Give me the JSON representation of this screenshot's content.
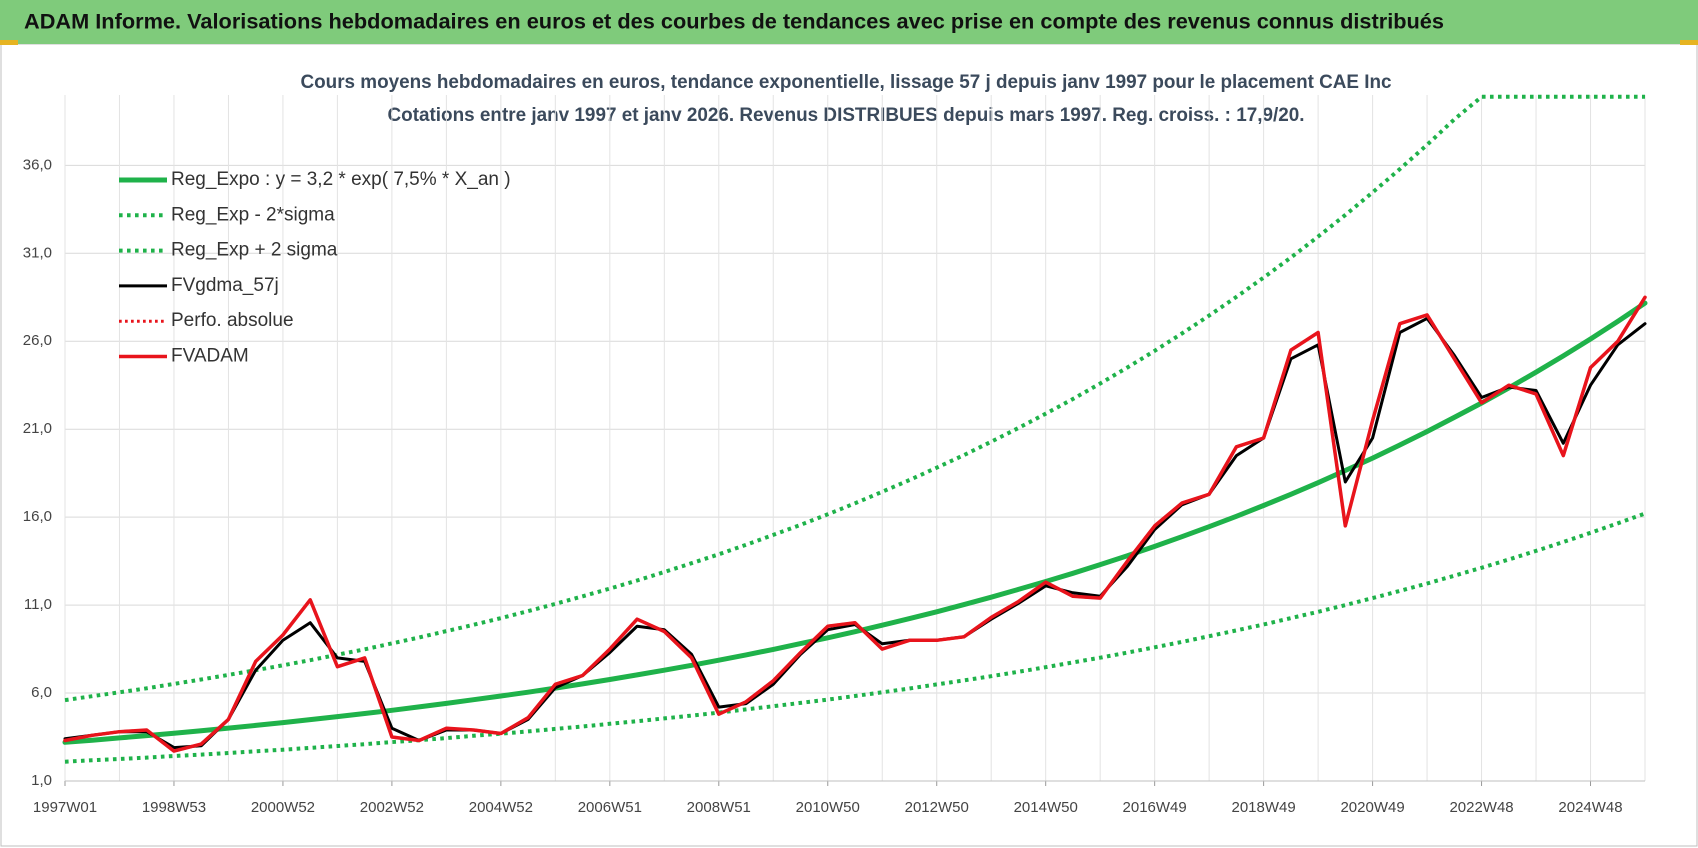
{
  "chart_data": {
    "type": "line",
    "title": "ADAM Informe. Valorisations hebdomadaires en euros et des courbes de tendances avec prise en compte des revenus connus distribués",
    "subtitle": [
      "Cours moyens hebdomadaires en euros, tendance exponentielle, lissage 57 j depuis janv 1997 pour le placement CAE Inc",
      "Cotations entre janv 1997 et janv 2026. Revenus DISTRIBUES depuis mars 1997. Reg. croiss. : 17,9/20."
    ],
    "categories": [
      "1997W01",
      null,
      null,
      null,
      "1998W53",
      null,
      null,
      null,
      "2000W52",
      null,
      null,
      null,
      "2002W52",
      null,
      null,
      null,
      "2004W52",
      null,
      null,
      null,
      "2006W51",
      null,
      null,
      null,
      "2008W51",
      null,
      null,
      null,
      "2010W50",
      null,
      null,
      null,
      "2012W50",
      null,
      null,
      null,
      "2014W50",
      null,
      null,
      null,
      "2016W49",
      null,
      null,
      null,
      "2018W49",
      null,
      null,
      null,
      "2020W49",
      null,
      null,
      null,
      "2022W48",
      null,
      null,
      null,
      "2024W48",
      null,
      null
    ],
    "ylim": [
      1,
      40
    ],
    "yticks": [
      {
        "value": 1,
        "label": "1,0"
      },
      {
        "value": 6,
        "label": "6,0"
      },
      {
        "value": 11,
        "label": "11,0"
      },
      {
        "value": 16,
        "label": "16,0"
      },
      {
        "value": 21,
        "label": "21,0"
      },
      {
        "value": 26,
        "label": "26,0"
      },
      {
        "value": 31,
        "label": "31,0"
      },
      {
        "value": 36,
        "label": "36,0"
      }
    ],
    "grid": true,
    "legend": "upper left",
    "series": [
      {
        "name": "Reg_Expo : y = 3,2 * exp( 7,5% *  X_an )",
        "color": "#1fb24a",
        "style": "solid",
        "width": 5,
        "values": [
          3.2,
          3.32,
          3.45,
          3.58,
          3.72,
          3.86,
          4.01,
          4.16,
          4.32,
          4.49,
          4.66,
          4.84,
          5.02,
          5.21,
          5.41,
          5.62,
          5.83,
          6.05,
          6.28,
          6.52,
          6.77,
          7.03,
          7.3,
          7.58,
          7.87,
          8.17,
          8.48,
          8.81,
          9.14,
          9.49,
          9.86,
          10.23,
          10.62,
          11.03,
          11.45,
          11.89,
          12.34,
          12.81,
          13.3,
          13.81,
          14.34,
          14.89,
          15.46,
          16.05,
          16.66,
          17.3,
          17.96,
          18.65,
          19.36,
          20.1,
          20.87,
          21.67,
          22.49,
          23.35,
          24.24,
          25.17,
          26.13,
          27.13,
          28.17
        ]
      },
      {
        "name": "Reg_Exp - 2*sigma",
        "color": "#1fb24a",
        "style": "dotted",
        "width": 4,
        "values": [
          2.1,
          2.18,
          2.25,
          2.33,
          2.42,
          2.5,
          2.59,
          2.69,
          2.78,
          2.88,
          2.99,
          3.09,
          3.21,
          3.32,
          3.44,
          3.57,
          3.69,
          3.82,
          3.96,
          4.1,
          4.25,
          4.4,
          4.56,
          4.72,
          4.89,
          5.07,
          5.25,
          5.44,
          5.63,
          5.83,
          6.04,
          6.26,
          6.49,
          6.72,
          6.96,
          7.21,
          7.47,
          7.74,
          8.01,
          8.3,
          8.6,
          8.91,
          9.23,
          9.56,
          9.9,
          10.26,
          10.62,
          11.0,
          11.4,
          11.81,
          12.23,
          12.67,
          13.12,
          13.59,
          14.08,
          14.59,
          15.11,
          15.65,
          16.21
        ]
      },
      {
        "name": "Reg_Exp + 2 sigma",
        "color": "#1fb24a",
        "style": "dotted",
        "width": 4,
        "values": [
          5.6,
          5.82,
          6.04,
          6.27,
          6.52,
          6.77,
          7.03,
          7.3,
          7.58,
          7.87,
          8.18,
          8.49,
          8.82,
          9.16,
          9.52,
          9.88,
          10.26,
          10.66,
          11.07,
          11.5,
          11.94,
          12.4,
          12.88,
          13.38,
          13.89,
          14.43,
          14.99,
          15.56,
          16.16,
          16.79,
          17.44,
          18.11,
          18.81,
          19.53,
          20.29,
          21.07,
          21.88,
          22.72,
          23.6,
          24.51,
          25.46,
          26.44,
          27.46,
          28.52,
          29.62,
          30.76,
          31.95,
          33.18,
          34.46,
          35.79,
          37.17,
          38.61,
          39.9,
          39.9,
          39.9,
          39.9,
          39.9,
          39.9,
          39.9
        ]
      },
      {
        "name": "FVgdma_57j",
        "color": "#000000",
        "style": "solid",
        "width": 3,
        "values": [
          3.4,
          3.6,
          3.8,
          3.8,
          2.9,
          3.0,
          4.5,
          7.3,
          9.0,
          10.0,
          8.0,
          7.8,
          4.0,
          3.3,
          3.9,
          3.9,
          3.7,
          4.5,
          6.3,
          7.0,
          8.3,
          9.8,
          9.6,
          8.2,
          5.2,
          5.4,
          6.5,
          8.2,
          9.6,
          9.9,
          8.8,
          9.0,
          9.0,
          9.2,
          10.2,
          11.1,
          12.1,
          11.7,
          11.5,
          13.2,
          15.3,
          16.7,
          17.3,
          19.5,
          20.5,
          25.0,
          25.8,
          18.0,
          20.5,
          26.5,
          27.3,
          25.2,
          22.8,
          23.4,
          23.2,
          20.2,
          23.5,
          25.8,
          27.0
        ]
      },
      {
        "name": "Perfo. absolue",
        "color": "#e8141c",
        "style": "dotted",
        "width": 3,
        "values": [
          3.3,
          3.6,
          3.8,
          3.9,
          2.7,
          3.1,
          4.5,
          7.8,
          9.3,
          11.3,
          7.5,
          8.0,
          3.5,
          3.3,
          4.0,
          3.9,
          3.7,
          4.6,
          6.5,
          7.0,
          8.5,
          10.2,
          9.5,
          8.0,
          4.8,
          5.5,
          6.7,
          8.3,
          9.8,
          10.0,
          8.5,
          9.0,
          9.0,
          9.2,
          10.3,
          11.2,
          12.3,
          11.5,
          11.4,
          13.5,
          15.5,
          16.8,
          17.3,
          20.0,
          20.5,
          25.5,
          26.5,
          15.5,
          21.5,
          27.0,
          27.5,
          25.0,
          22.5,
          23.5,
          23.0,
          19.5,
          24.5,
          26.0,
          28.5
        ]
      },
      {
        "name": "FVADAM",
        "color": "#e8141c",
        "style": "solid",
        "width": 3.5,
        "values": [
          3.3,
          3.6,
          3.8,
          3.9,
          2.7,
          3.1,
          4.5,
          7.8,
          9.3,
          11.3,
          7.5,
          8.0,
          3.5,
          3.3,
          4.0,
          3.9,
          3.7,
          4.6,
          6.5,
          7.0,
          8.5,
          10.2,
          9.5,
          8.0,
          4.8,
          5.5,
          6.7,
          8.3,
          9.8,
          10.0,
          8.5,
          9.0,
          9.0,
          9.2,
          10.3,
          11.2,
          12.3,
          11.5,
          11.4,
          13.5,
          15.5,
          16.8,
          17.3,
          20.0,
          20.5,
          25.5,
          26.5,
          15.5,
          21.5,
          27.0,
          27.5,
          25.0,
          22.5,
          23.5,
          23.0,
          19.5,
          24.5,
          26.0,
          28.5
        ]
      }
    ]
  }
}
